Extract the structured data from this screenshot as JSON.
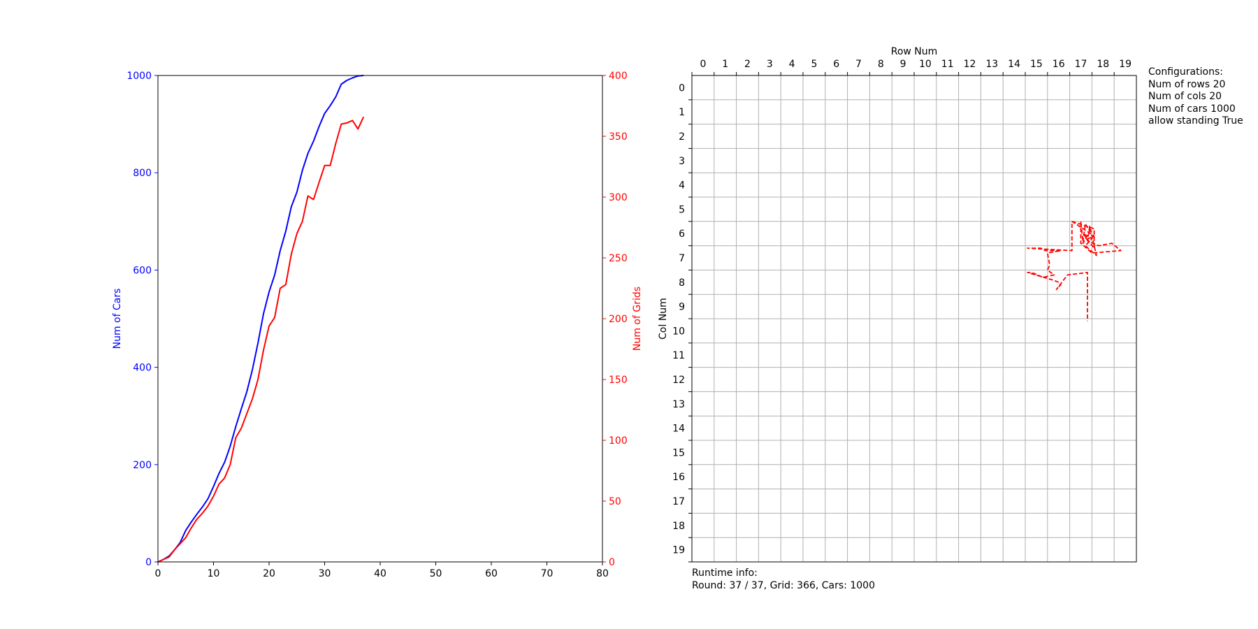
{
  "chart_data": [
    {
      "type": "line",
      "x_ticks": [
        0,
        10,
        20,
        30,
        40,
        50,
        60,
        70,
        80
      ],
      "xlim": [
        0,
        80
      ],
      "y_left_label": "Num of Cars",
      "y_left_ticks": [
        0,
        200,
        400,
        600,
        800,
        1000
      ],
      "y_left_lim": [
        0,
        1000
      ],
      "y_right_label": "Num of Grids",
      "y_right_ticks": [
        0,
        50,
        100,
        150,
        200,
        250,
        300,
        350,
        400
      ],
      "y_right_lim": [
        0,
        400
      ],
      "grid": false,
      "series": [
        {
          "axis": "left",
          "color": "#0000ff",
          "x": [
            0,
            1,
            2,
            3,
            4,
            5,
            6,
            7,
            8,
            9,
            10,
            11,
            12,
            13,
            14,
            15,
            16,
            17,
            18,
            19,
            20,
            21,
            22,
            23,
            24,
            25,
            26,
            27,
            28,
            29,
            30,
            31,
            32,
            33,
            34,
            35,
            36,
            37
          ],
          "values": [
            0,
            5,
            12,
            25,
            40,
            65,
            82,
            98,
            113,
            130,
            155,
            182,
            205,
            238,
            278,
            315,
            350,
            395,
            450,
            510,
            555,
            590,
            640,
            680,
            730,
            760,
            805,
            840,
            865,
            895,
            922,
            938,
            956,
            982,
            990,
            995,
            999,
            1000
          ]
        },
        {
          "axis": "right",
          "color": "#ff0000",
          "x": [
            0,
            1,
            2,
            3,
            4,
            5,
            6,
            7,
            8,
            9,
            10,
            11,
            12,
            13,
            14,
            15,
            16,
            17,
            18,
            19,
            20,
            21,
            22,
            23,
            24,
            25,
            26,
            27,
            28,
            29,
            30,
            31,
            32,
            33,
            34,
            35,
            36,
            37
          ],
          "values": [
            0,
            2,
            4,
            10,
            15,
            20,
            28,
            35,
            40,
            46,
            54,
            64,
            69,
            80,
            102,
            110,
            122,
            134,
            150,
            174,
            194,
            201,
            225,
            228,
            253,
            270,
            280,
            301,
            298,
            312,
            326,
            326,
            344,
            360,
            361,
            363,
            356,
            366
          ]
        }
      ]
    },
    {
      "type": "grid-map",
      "x_label": "Row Num",
      "y_label": "Col Num",
      "x_ticks": [
        0,
        1,
        2,
        3,
        4,
        5,
        6,
        7,
        8,
        9,
        10,
        11,
        12,
        13,
        14,
        15,
        16,
        17,
        18,
        19
      ],
      "y_ticks": [
        0,
        1,
        2,
        3,
        4,
        5,
        6,
        7,
        8,
        9,
        10,
        11,
        12,
        13,
        14,
        15,
        16,
        17,
        18,
        19
      ],
      "grid": true,
      "path_color": "#ff0000",
      "path_style": "dashed",
      "path": [
        [
          17.1,
          6.0
        ],
        [
          18.1,
          6.3
        ],
        [
          18.1,
          7.1
        ],
        [
          17.6,
          6.5
        ],
        [
          18.0,
          6.7
        ],
        [
          17.7,
          7.0
        ],
        [
          18.2,
          7.4
        ],
        [
          17.9,
          6.2
        ],
        [
          17.8,
          6.8
        ],
        [
          18.3,
          7.0
        ],
        [
          18.9,
          6.9
        ],
        [
          19.3,
          7.2
        ],
        [
          18.0,
          7.3
        ],
        [
          17.5,
          6.9
        ],
        [
          17.5,
          6.0
        ],
        [
          17.6,
          6.9
        ],
        [
          17.9,
          6.4
        ],
        [
          17.7,
          6.1
        ],
        [
          17.6,
          6.8
        ],
        [
          18.1,
          6.6
        ],
        [
          17.1,
          6.0
        ],
        [
          17.1,
          7.2
        ],
        [
          15.1,
          7.1
        ],
        [
          15.7,
          7.1
        ],
        [
          15.9,
          7.2
        ],
        [
          16.6,
          7.2
        ],
        [
          16.0,
          7.3
        ],
        [
          16.1,
          7.8
        ],
        [
          16.0,
          8.0
        ],
        [
          16.3,
          8.2
        ],
        [
          15.8,
          8.3
        ],
        [
          15.3,
          8.1
        ],
        [
          15.1,
          8.1
        ],
        [
          16.2,
          8.4
        ],
        [
          16.5,
          8.5
        ],
        [
          16.6,
          8.6
        ],
        [
          16.4,
          8.8
        ],
        [
          16.9,
          8.2
        ],
        [
          17.8,
          8.1
        ],
        [
          17.8,
          10.1
        ]
      ]
    }
  ],
  "runtime_info": {
    "title": "Runtime info:",
    "status": "Round: 37 / 37, Grid: 366, Cars: 1000"
  },
  "configurations": {
    "title": "Configurations:",
    "rows": "Num of rows 20",
    "cols": "Num of cols 20",
    "cars": "Num of cars 1000",
    "standing": "allow standing True"
  }
}
